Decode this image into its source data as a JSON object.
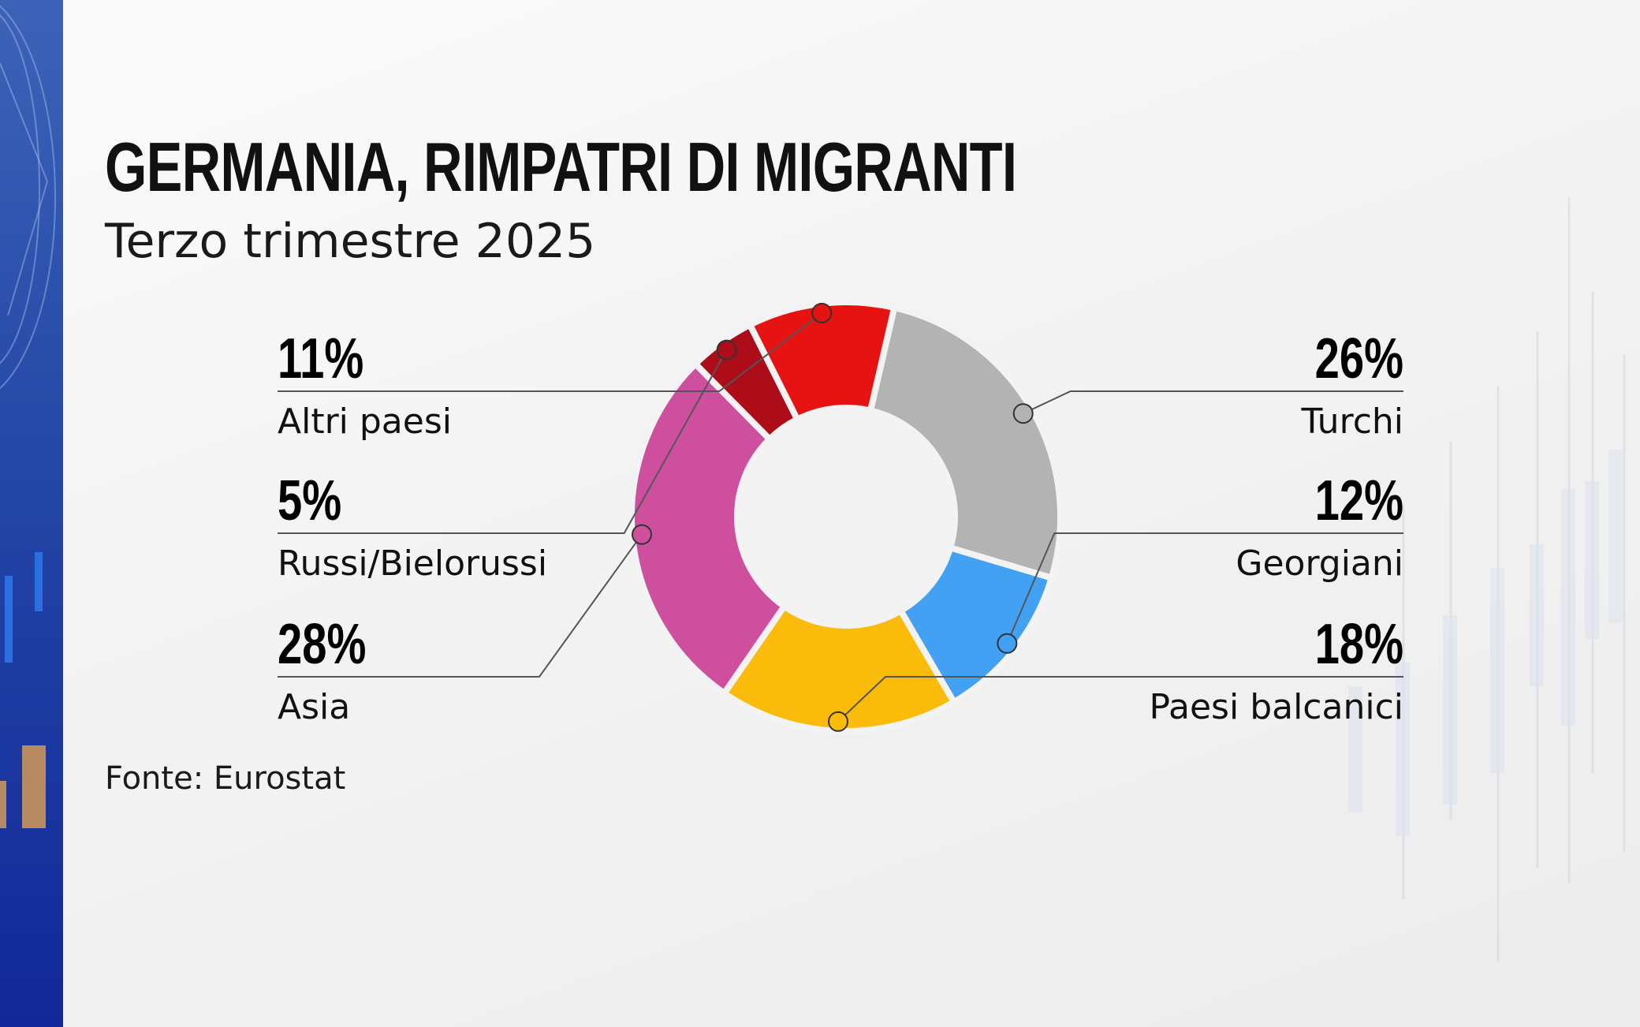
{
  "title": "GERMANIA, RIMPATRI DI MIGRANTI",
  "subtitle": "Terzo trimestre 2025",
  "source": "Fonte: Eurostat",
  "chart_data": {
    "type": "pie",
    "title": "GERMANIA, RIMPATRI DI MIGRANTI",
    "subtitle": "Terzo trimestre 2025",
    "slices": [
      {
        "name": "Turchi",
        "value": 26,
        "label": "26%",
        "color": "#b3b3b3",
        "side": "right"
      },
      {
        "name": "Georgiani",
        "value": 12,
        "label": "12%",
        "color": "#42a1f2",
        "side": "right"
      },
      {
        "name": "Paesi balcanici",
        "value": 18,
        "label": "18%",
        "color": "#fbbb0a",
        "side": "right"
      },
      {
        "name": "Asia",
        "value": 28,
        "label": "28%",
        "color": "#cf4f9f",
        "side": "left"
      },
      {
        "name": "Russi/Bielorussi",
        "value": 5,
        "label": "5%",
        "color": "#ad0d19",
        "side": "left"
      },
      {
        "name": "Altri paesi",
        "value": 11,
        "label": "11%",
        "color": "#e71313",
        "side": "left"
      }
    ]
  }
}
